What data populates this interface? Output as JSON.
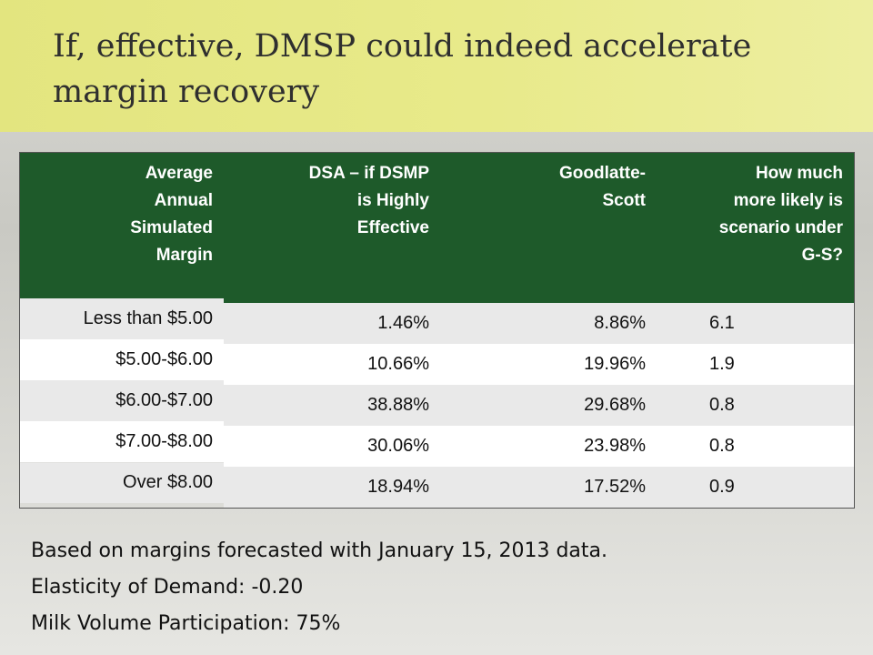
{
  "slide": {
    "title": "If, effective, DMSP could indeed accelerate margin recovery"
  },
  "table": {
    "headers": [
      [
        "Average",
        "Annual",
        "Simulated",
        "Margin"
      ],
      [
        "DSA – if DSMP",
        "is Highly",
        "Effective"
      ],
      [
        "Goodlatte-",
        "Scott"
      ],
      [
        "How much",
        "more likely is",
        "scenario under",
        "G-S?"
      ]
    ],
    "rows": [
      {
        "band": "Less than $5.00",
        "dsa": "1.46%",
        "gs": "8.86%",
        "ratio": "6.1"
      },
      {
        "band": "$5.00-$6.00",
        "dsa": "10.66%",
        "gs": "19.96%",
        "ratio": "1.9"
      },
      {
        "band": "$6.00-$7.00",
        "dsa": "38.88%",
        "gs": "29.68%",
        "ratio": "0.8"
      },
      {
        "band": "$7.00-$8.00",
        "dsa": "30.06%",
        "gs": "23.98%",
        "ratio": "0.8"
      },
      {
        "band": "Over $8.00",
        "dsa": "18.94%",
        "gs": "17.52%",
        "ratio": "0.9"
      }
    ]
  },
  "notes": [
    "Based on margins forecasted with January 15, 2013 data.",
    "Elasticity of Demand: -0.20",
    "Milk Volume Participation: 75%"
  ]
}
